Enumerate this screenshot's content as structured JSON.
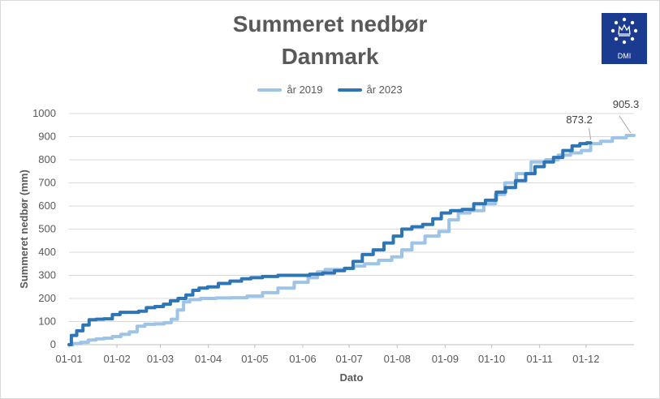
{
  "chart_data": {
    "type": "line",
    "title": "Summeret nedbør",
    "subtitle": "Danmark",
    "xlabel": "Dato",
    "ylabel": "Summeret nedbør (mm)",
    "xlim": [
      0,
      365
    ],
    "ylim": [
      0,
      1000
    ],
    "y_ticks": [
      0,
      100,
      200,
      300,
      400,
      500,
      600,
      700,
      800,
      900,
      1000
    ],
    "x_ticks": [
      {
        "label": "01-01",
        "day": 0
      },
      {
        "label": "01-02",
        "day": 31
      },
      {
        "label": "01-03",
        "day": 59
      },
      {
        "label": "01-04",
        "day": 90
      },
      {
        "label": "01-05",
        "day": 120
      },
      {
        "label": "01-06",
        "day": 151
      },
      {
        "label": "01-07",
        "day": 181
      },
      {
        "label": "01-08",
        "day": 212
      },
      {
        "label": "01-09",
        "day": 243
      },
      {
        "label": "01-10",
        "day": 273
      },
      {
        "label": "01-11",
        "day": 304
      },
      {
        "label": "01-12",
        "day": 334
      }
    ],
    "grid": true,
    "legend_position": "top",
    "series": [
      {
        "name": "år 2019",
        "color": "#9dc3e6",
        "points": [
          [
            0,
            0
          ],
          [
            5,
            5
          ],
          [
            10,
            10
          ],
          [
            15,
            20
          ],
          [
            20,
            25
          ],
          [
            25,
            28
          ],
          [
            31,
            35
          ],
          [
            36,
            45
          ],
          [
            42,
            55
          ],
          [
            46,
            80
          ],
          [
            52,
            88
          ],
          [
            59,
            90
          ],
          [
            64,
            95
          ],
          [
            68,
            110
          ],
          [
            72,
            150
          ],
          [
            76,
            185
          ],
          [
            80,
            195
          ],
          [
            90,
            200
          ],
          [
            100,
            202
          ],
          [
            110,
            203
          ],
          [
            120,
            210
          ],
          [
            130,
            225
          ],
          [
            140,
            245
          ],
          [
            151,
            270
          ],
          [
            158,
            290
          ],
          [
            163,
            315
          ],
          [
            168,
            325
          ],
          [
            175,
            325
          ],
          [
            181,
            330
          ],
          [
            187,
            340
          ],
          [
            195,
            350
          ],
          [
            205,
            365
          ],
          [
            212,
            380
          ],
          [
            218,
            410
          ],
          [
            225,
            440
          ],
          [
            235,
            470
          ],
          [
            243,
            490
          ],
          [
            248,
            540
          ],
          [
            255,
            570
          ],
          [
            263,
            580
          ],
          [
            273,
            610
          ],
          [
            278,
            650
          ],
          [
            285,
            700
          ],
          [
            293,
            740
          ],
          [
            304,
            790
          ],
          [
            312,
            800
          ],
          [
            320,
            820
          ],
          [
            328,
            830
          ],
          [
            334,
            840
          ],
          [
            340,
            870
          ],
          [
            347,
            880
          ],
          [
            355,
            895
          ],
          [
            365,
            905.3
          ]
        ],
        "end_label": "905.3"
      },
      {
        "name": "år 2023",
        "color": "#2e75b6",
        "points": [
          [
            0,
            0
          ],
          [
            3,
            40
          ],
          [
            7,
            60
          ],
          [
            11,
            85
          ],
          [
            15,
            108
          ],
          [
            20,
            110
          ],
          [
            25,
            112
          ],
          [
            31,
            130
          ],
          [
            35,
            140
          ],
          [
            42,
            140
          ],
          [
            48,
            145
          ],
          [
            52,
            160
          ],
          [
            59,
            165
          ],
          [
            63,
            175
          ],
          [
            68,
            190
          ],
          [
            73,
            200
          ],
          [
            78,
            215
          ],
          [
            82,
            235
          ],
          [
            86,
            245
          ],
          [
            93,
            250
          ],
          [
            100,
            265
          ],
          [
            108,
            275
          ],
          [
            115,
            285
          ],
          [
            120,
            290
          ],
          [
            130,
            295
          ],
          [
            140,
            300
          ],
          [
            151,
            300
          ],
          [
            160,
            305
          ],
          [
            168,
            310
          ],
          [
            175,
            320
          ],
          [
            181,
            330
          ],
          [
            186,
            360
          ],
          [
            193,
            390
          ],
          [
            200,
            410
          ],
          [
            207,
            440
          ],
          [
            212,
            470
          ],
          [
            218,
            500
          ],
          [
            225,
            510
          ],
          [
            232,
            520
          ],
          [
            238,
            545
          ],
          [
            243,
            570
          ],
          [
            250,
            580
          ],
          [
            258,
            585
          ],
          [
            265,
            610
          ],
          [
            273,
            625
          ],
          [
            279,
            660
          ],
          [
            285,
            680
          ],
          [
            292,
            710
          ],
          [
            298,
            740
          ],
          [
            304,
            770
          ],
          [
            310,
            790
          ],
          [
            316,
            810
          ],
          [
            322,
            840
          ],
          [
            328,
            860
          ],
          [
            332,
            870
          ],
          [
            337,
            873.2
          ]
        ],
        "end_label": "873.2"
      }
    ]
  }
}
